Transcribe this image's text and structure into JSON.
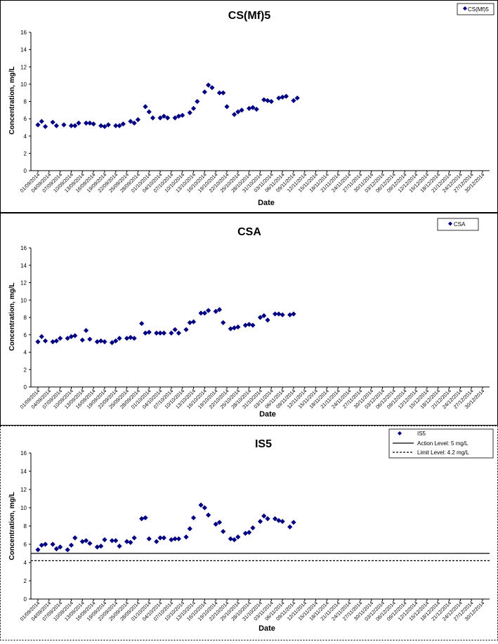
{
  "chart_data": [
    {
      "type": "scatter",
      "title": "CS(Mf)5",
      "xlabel": "Date",
      "ylabel": "Concentration, mg/L",
      "ylim": [
        0,
        16
      ],
      "yticks": [
        "0",
        "2",
        "4",
        "6",
        "8",
        "10",
        "12",
        "14",
        "16"
      ],
      "xtick_labels": [
        "01/09/2014",
        "04/09/2014",
        "07/09/2014",
        "10/09/2014",
        "13/09/2014",
        "16/09/2014",
        "19/09/2014",
        "22/09/2014",
        "25/09/2014",
        "28/09/2014",
        "01/10/2014",
        "04/10/2014",
        "07/10/2014",
        "10/10/2014",
        "13/10/2014",
        "16/10/2014",
        "19/10/2014",
        "22/10/2014",
        "25/10/2014",
        "28/10/2014",
        "31/10/2014",
        "03/11/2014",
        "06/11/2014",
        "09/11/2014",
        "12/11/2014",
        "15/11/2014",
        "18/11/2014",
        "21/11/2014",
        "24/11/2014",
        "27/11/2014",
        "30/11/2014",
        "03/12/2014",
        "06/12/2014",
        "09/12/2014",
        "12/12/2014",
        "15/12/2014",
        "18/12/2014",
        "21/12/2014",
        "24/12/2014",
        "27/12/2014",
        "30/12/2014"
      ],
      "grid": false,
      "legend_position": "top-right",
      "marker_color": "#000080",
      "series": [
        {
          "name": "CS(Mf)5",
          "marker": "diamond",
          "points": [
            [
              "01/09/2014",
              5.3
            ],
            [
              "02/09/2014",
              5.7
            ],
            [
              "03/09/2014",
              5.1
            ],
            [
              "05/09/2014",
              5.6
            ],
            [
              "06/09/2014",
              5.2
            ],
            [
              "08/09/2014",
              5.3
            ],
            [
              "10/09/2014",
              5.2
            ],
            [
              "11/09/2014",
              5.2
            ],
            [
              "12/09/2014",
              5.5
            ],
            [
              "14/09/2014",
              5.5
            ],
            [
              "15/09/2014",
              5.5
            ],
            [
              "16/09/2014",
              5.4
            ],
            [
              "18/09/2014",
              5.2
            ],
            [
              "19/09/2014",
              5.1
            ],
            [
              "20/09/2014",
              5.3
            ],
            [
              "22/09/2014",
              5.2
            ],
            [
              "23/09/2014",
              5.2
            ],
            [
              "24/09/2014",
              5.4
            ],
            [
              "26/09/2014",
              5.7
            ],
            [
              "27/09/2014",
              5.5
            ],
            [
              "28/09/2014",
              5.9
            ],
            [
              "30/09/2014",
              7.4
            ],
            [
              "01/10/2014",
              6.8
            ],
            [
              "02/10/2014",
              6.1
            ],
            [
              "04/10/2014",
              6.1
            ],
            [
              "05/10/2014",
              6.3
            ],
            [
              "06/10/2014",
              6.1
            ],
            [
              "08/10/2014",
              6.1
            ],
            [
              "09/10/2014",
              6.3
            ],
            [
              "10/10/2014",
              6.4
            ],
            [
              "12/10/2014",
              6.7
            ],
            [
              "13/10/2014",
              7.2
            ],
            [
              "14/10/2014",
              8.0
            ],
            [
              "16/10/2014",
              9.1
            ],
            [
              "17/10/2014",
              9.9
            ],
            [
              "18/10/2014",
              9.6
            ],
            [
              "20/10/2014",
              9.0
            ],
            [
              "21/10/2014",
              9.0
            ],
            [
              "22/10/2014",
              7.4
            ],
            [
              "24/10/2014",
              6.5
            ],
            [
              "25/10/2014",
              6.8
            ],
            [
              "26/10/2014",
              7.0
            ],
            [
              "28/10/2014",
              7.2
            ],
            [
              "29/10/2014",
              7.3
            ],
            [
              "30/10/2014",
              7.1
            ],
            [
              "01/11/2014",
              8.2
            ],
            [
              "02/11/2014",
              8.1
            ],
            [
              "03/11/2014",
              8.0
            ],
            [
              "05/11/2014",
              8.4
            ],
            [
              "06/11/2014",
              8.5
            ],
            [
              "07/11/2014",
              8.6
            ],
            [
              "09/11/2014",
              8.1
            ],
            [
              "10/11/2014",
              8.4
            ]
          ]
        }
      ]
    },
    {
      "type": "scatter",
      "title": "CSA",
      "xlabel": "Date",
      "ylabel": "Concentration, mg/L",
      "ylim": [
        0,
        16
      ],
      "yticks": [
        "0",
        "2",
        "4",
        "6",
        "8",
        "10",
        "12",
        "14",
        "16"
      ],
      "xtick_labels": [
        "01/09/2014",
        "04/09/2014",
        "07/09/2014",
        "10/09/2014",
        "13/09/2014",
        "16/09/2014",
        "19/09/2014",
        "22/09/2014",
        "25/09/2014",
        "28/09/2014",
        "01/10/2014",
        "04/10/2014",
        "07/10/2014",
        "10/10/2014",
        "13/10/2014",
        "16/10/2014",
        "19/10/2014",
        "22/10/2014",
        "25/10/2014",
        "28/10/2014",
        "31/10/2014",
        "03/11/2014",
        "06/11/2014",
        "09/11/2014",
        "12/11/2014",
        "15/11/2014",
        "18/11/2014",
        "21/11/2014",
        "24/11/2014",
        "27/11/2014",
        "30/11/2014",
        "03/12/2014",
        "06/12/2014",
        "09/12/2014",
        "12/12/2014",
        "15/12/2014",
        "18/12/2014",
        "21/12/2014",
        "24/12/2014",
        "27/12/2014",
        "30/12/2014"
      ],
      "grid": false,
      "legend_position": "top-right",
      "marker_color": "#000080",
      "series": [
        {
          "name": "CSA",
          "marker": "diamond",
          "points": [
            [
              "01/09/2014",
              5.2
            ],
            [
              "02/09/2014",
              5.8
            ],
            [
              "03/09/2014",
              5.3
            ],
            [
              "05/09/2014",
              5.2
            ],
            [
              "06/09/2014",
              5.3
            ],
            [
              "07/09/2014",
              5.6
            ],
            [
              "09/09/2014",
              5.6
            ],
            [
              "10/09/2014",
              5.8
            ],
            [
              "11/09/2014",
              5.9
            ],
            [
              "13/09/2014",
              5.4
            ],
            [
              "14/09/2014",
              6.5
            ],
            [
              "15/09/2014",
              5.5
            ],
            [
              "17/09/2014",
              5.2
            ],
            [
              "18/09/2014",
              5.3
            ],
            [
              "19/09/2014",
              5.2
            ],
            [
              "21/09/2014",
              5.1
            ],
            [
              "22/09/2014",
              5.3
            ],
            [
              "23/09/2014",
              5.6
            ],
            [
              "25/09/2014",
              5.6
            ],
            [
              "26/09/2014",
              5.7
            ],
            [
              "27/09/2014",
              5.6
            ],
            [
              "29/09/2014",
              7.3
            ],
            [
              "30/09/2014",
              6.2
            ],
            [
              "01/10/2014",
              6.3
            ],
            [
              "03/10/2014",
              6.2
            ],
            [
              "04/10/2014",
              6.2
            ],
            [
              "05/10/2014",
              6.2
            ],
            [
              "07/10/2014",
              6.2
            ],
            [
              "08/10/2014",
              6.6
            ],
            [
              "09/10/2014",
              6.2
            ],
            [
              "11/10/2014",
              6.6
            ],
            [
              "12/10/2014",
              7.4
            ],
            [
              "13/10/2014",
              7.5
            ],
            [
              "15/10/2014",
              8.5
            ],
            [
              "16/10/2014",
              8.5
            ],
            [
              "17/10/2014",
              8.8
            ],
            [
              "19/10/2014",
              8.7
            ],
            [
              "20/10/2014",
              8.9
            ],
            [
              "21/10/2014",
              7.4
            ],
            [
              "23/10/2014",
              6.7
            ],
            [
              "24/10/2014",
              6.8
            ],
            [
              "25/10/2014",
              6.9
            ],
            [
              "27/10/2014",
              7.1
            ],
            [
              "28/10/2014",
              7.2
            ],
            [
              "29/10/2014",
              7.1
            ],
            [
              "31/10/2014",
              8.0
            ],
            [
              "01/11/2014",
              8.2
            ],
            [
              "02/11/2014",
              7.7
            ],
            [
              "04/11/2014",
              8.4
            ],
            [
              "05/11/2014",
              8.4
            ],
            [
              "06/11/2014",
              8.3
            ],
            [
              "08/11/2014",
              8.3
            ],
            [
              "09/11/2014",
              8.4
            ]
          ]
        }
      ]
    },
    {
      "type": "scatter",
      "title": "IS5",
      "xlabel": "Date",
      "ylabel": "Concentration, mg/L",
      "ylim": [
        0,
        16
      ],
      "yticks": [
        "0",
        "2",
        "4",
        "6",
        "8",
        "10",
        "12",
        "14",
        "16"
      ],
      "xtick_labels": [
        "01/09/2014",
        "04/09/2014",
        "07/09/2014",
        "10/09/2014",
        "13/09/2014",
        "16/09/2014",
        "19/09/2014",
        "22/09/2014",
        "25/09/2014",
        "28/09/2014",
        "01/10/2014",
        "04/10/2014",
        "07/10/2014",
        "10/10/2014",
        "13/10/2014",
        "16/10/2014",
        "19/10/2014",
        "22/10/2014",
        "25/10/2014",
        "28/10/2014",
        "31/10/2014",
        "03/11/2014",
        "06/11/2014",
        "09/11/2014",
        "12/11/2014",
        "15/11/2014",
        "18/11/2014",
        "21/11/2014",
        "24/11/2014",
        "27/11/2014",
        "30/11/2014",
        "03/12/2014",
        "06/12/2014",
        "09/12/2014",
        "12/12/2014",
        "15/12/2014",
        "18/12/2014",
        "21/12/2014",
        "24/12/2014",
        "27/12/2014",
        "30/12/2014"
      ],
      "grid": false,
      "legend_position": "top-right",
      "marker_color": "#000080",
      "series": [
        {
          "name": "IS5",
          "marker": "diamond",
          "points": [
            [
              "01/09/2014",
              5.4
            ],
            [
              "02/09/2014",
              5.9
            ],
            [
              "03/09/2014",
              6.0
            ],
            [
              "05/09/2014",
              6.0
            ],
            [
              "06/09/2014",
              5.5
            ],
            [
              "07/09/2014",
              5.7
            ],
            [
              "09/09/2014",
              5.4
            ],
            [
              "10/09/2014",
              5.9
            ],
            [
              "11/09/2014",
              6.7
            ],
            [
              "13/09/2014",
              6.3
            ],
            [
              "14/09/2014",
              6.4
            ],
            [
              "15/09/2014",
              6.1
            ],
            [
              "17/09/2014",
              5.7
            ],
            [
              "18/09/2014",
              5.8
            ],
            [
              "19/09/2014",
              6.5
            ],
            [
              "21/09/2014",
              6.4
            ],
            [
              "22/09/2014",
              6.4
            ],
            [
              "23/09/2014",
              5.8
            ],
            [
              "25/09/2014",
              6.3
            ],
            [
              "26/09/2014",
              6.2
            ],
            [
              "27/09/2014",
              6.7
            ],
            [
              "29/09/2014",
              8.8
            ],
            [
              "30/09/2014",
              8.9
            ],
            [
              "01/10/2014",
              6.6
            ],
            [
              "03/10/2014",
              6.3
            ],
            [
              "04/10/2014",
              6.7
            ],
            [
              "05/10/2014",
              6.7
            ],
            [
              "07/10/2014",
              6.5
            ],
            [
              "08/10/2014",
              6.6
            ],
            [
              "09/10/2014",
              6.6
            ],
            [
              "11/10/2014",
              6.8
            ],
            [
              "12/10/2014",
              7.7
            ],
            [
              "13/10/2014",
              8.9
            ],
            [
              "15/10/2014",
              10.3
            ],
            [
              "16/10/2014",
              10.0
            ],
            [
              "17/10/2014",
              9.2
            ],
            [
              "19/10/2014",
              8.2
            ],
            [
              "20/10/2014",
              8.4
            ],
            [
              "21/10/2014",
              7.4
            ],
            [
              "23/10/2014",
              6.6
            ],
            [
              "24/10/2014",
              6.5
            ],
            [
              "25/10/2014",
              6.8
            ],
            [
              "27/10/2014",
              7.2
            ],
            [
              "28/10/2014",
              7.3
            ],
            [
              "29/10/2014",
              7.8
            ],
            [
              "31/10/2014",
              8.5
            ],
            [
              "01/11/2014",
              9.1
            ],
            [
              "02/11/2014",
              8.8
            ],
            [
              "04/11/2014",
              8.8
            ],
            [
              "05/11/2014",
              8.6
            ],
            [
              "06/11/2014",
              8.5
            ],
            [
              "08/11/2014",
              7.9
            ],
            [
              "09/11/2014",
              8.4
            ]
          ]
        },
        {
          "name": "Action Level: 5 mg/L",
          "type": "hline",
          "value": 5,
          "style": "solid"
        },
        {
          "name": "Limit Level: 4.2 mg/L",
          "type": "hline",
          "value": 4.2,
          "style": "dashed"
        }
      ]
    }
  ]
}
